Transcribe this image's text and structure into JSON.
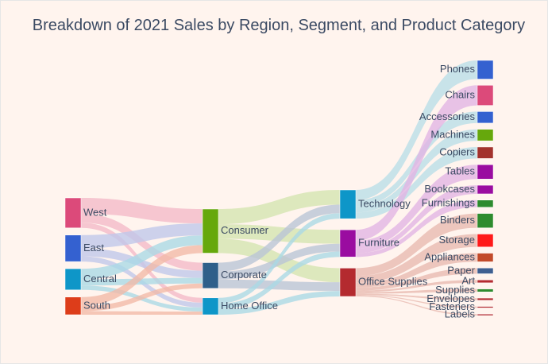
{
  "chart_data": {
    "type": "sankey",
    "title": "Breakdown of 2021 Sales by Region, Segment, and Product Category",
    "nodes": [
      {
        "id": "west",
        "label": "West",
        "color": "#dc4a7a"
      },
      {
        "id": "east",
        "label": "East",
        "color": "#3461d0"
      },
      {
        "id": "central",
        "label": "Central",
        "color": "#0e96c8"
      },
      {
        "id": "south",
        "label": "South",
        "color": "#dd3d1a"
      },
      {
        "id": "consumer",
        "label": "Consumer",
        "color": "#66a80c"
      },
      {
        "id": "corporate",
        "label": "Corporate",
        "color": "#2f5f8a"
      },
      {
        "id": "homeoffice",
        "label": "Home Office",
        "color": "#0e96c8"
      },
      {
        "id": "technology",
        "label": "Technology",
        "color": "#0e96c8"
      },
      {
        "id": "furniture",
        "label": "Furniture",
        "color": "#9a0ca0"
      },
      {
        "id": "officesupplies",
        "label": "Office Supplies",
        "color": "#b42a2f"
      },
      {
        "id": "phones",
        "label": "Phones",
        "color": "#3461d0"
      },
      {
        "id": "chairs",
        "label": "Chairs",
        "color": "#dc4a7a"
      },
      {
        "id": "accessories",
        "label": "Accessories",
        "color": "#3461d0"
      },
      {
        "id": "machines",
        "label": "Machines",
        "color": "#66a80c"
      },
      {
        "id": "copiers",
        "label": "Copiers",
        "color": "#a3322d"
      },
      {
        "id": "tables",
        "label": "Tables",
        "color": "#9a0ca0"
      },
      {
        "id": "bookcases",
        "label": "Bookcases",
        "color": "#9a0ca0"
      },
      {
        "id": "furnishings",
        "label": "Furnishings",
        "color": "#2e8b2e"
      },
      {
        "id": "binders",
        "label": "Binders",
        "color": "#2e8b2e"
      },
      {
        "id": "storage",
        "label": "Storage",
        "color": "#ff1a1a"
      },
      {
        "id": "appliances",
        "label": "Appliances",
        "color": "#c24a2a"
      },
      {
        "id": "paper",
        "label": "Paper",
        "color": "#3e5f90"
      },
      {
        "id": "art",
        "label": "Art",
        "color": "#b42a2f"
      },
      {
        "id": "supplies",
        "label": "Supplies",
        "color": "#2e8b2e"
      },
      {
        "id": "envelopes",
        "label": "Envelopes",
        "color": "#b42a2f"
      },
      {
        "id": "fasteners",
        "label": "Fasteners",
        "color": "#b42a2f"
      },
      {
        "id": "labels",
        "label": "Labels",
        "color": "#b42a2f"
      }
    ],
    "links": [
      {
        "source": "west",
        "target": "consumer",
        "value": 18,
        "color": "#f4b8c8"
      },
      {
        "source": "west",
        "target": "corporate",
        "value": 10,
        "color": "#f4b8c8"
      },
      {
        "source": "west",
        "target": "homeoffice",
        "value": 6,
        "color": "#f4b8c8"
      },
      {
        "source": "east",
        "target": "consumer",
        "value": 15,
        "color": "#bfc7ea"
      },
      {
        "source": "east",
        "target": "corporate",
        "value": 9,
        "color": "#bfc7ea"
      },
      {
        "source": "east",
        "target": "homeoffice",
        "value": 6,
        "color": "#bfc7ea"
      },
      {
        "source": "central",
        "target": "consumer",
        "value": 12,
        "color": "#a9d8e6"
      },
      {
        "source": "central",
        "target": "corporate",
        "value": 7,
        "color": "#a9d8e6"
      },
      {
        "source": "central",
        "target": "homeoffice",
        "value": 5,
        "color": "#a9d8e6"
      },
      {
        "source": "south",
        "target": "consumer",
        "value": 10,
        "color": "#f2b8a6"
      },
      {
        "source": "south",
        "target": "corporate",
        "value": 6,
        "color": "#f2b8a6"
      },
      {
        "source": "south",
        "target": "homeoffice",
        "value": 4,
        "color": "#f2b8a6"
      },
      {
        "source": "consumer",
        "target": "technology",
        "value": 19,
        "color": "#d3e4b0"
      },
      {
        "source": "consumer",
        "target": "furniture",
        "value": 18,
        "color": "#d3e4b0"
      },
      {
        "source": "consumer",
        "target": "officesupplies",
        "value": 18,
        "color": "#d3e4b0"
      },
      {
        "source": "corporate",
        "target": "technology",
        "value": 11,
        "color": "#b9c4d6"
      },
      {
        "source": "corporate",
        "target": "furniture",
        "value": 10,
        "color": "#b9c4d6"
      },
      {
        "source": "corporate",
        "target": "officesupplies",
        "value": 11,
        "color": "#b9c4d6"
      },
      {
        "source": "homeoffice",
        "target": "technology",
        "value": 7,
        "color": "#a9d8e6"
      },
      {
        "source": "homeoffice",
        "target": "furniture",
        "value": 7,
        "color": "#a9d8e6"
      },
      {
        "source": "homeoffice",
        "target": "officesupplies",
        "value": 7,
        "color": "#a9d8e6"
      },
      {
        "source": "technology",
        "target": "phones",
        "value": 13,
        "color": "#b9dee8"
      },
      {
        "source": "technology",
        "target": "accessories",
        "value": 8,
        "color": "#b9dee8"
      },
      {
        "source": "technology",
        "target": "machines",
        "value": 8,
        "color": "#b9dee8"
      },
      {
        "source": "technology",
        "target": "copiers",
        "value": 8,
        "color": "#b9dee8"
      },
      {
        "source": "furniture",
        "target": "chairs",
        "value": 14,
        "color": "#e2b4e4"
      },
      {
        "source": "furniture",
        "target": "tables",
        "value": 10,
        "color": "#e2b4e4"
      },
      {
        "source": "furniture",
        "target": "bookcases",
        "value": 6,
        "color": "#e2b4e4"
      },
      {
        "source": "furniture",
        "target": "furnishings",
        "value": 5,
        "color": "#e2b4e4"
      },
      {
        "source": "officesupplies",
        "target": "binders",
        "value": 10,
        "color": "#e8b8b0"
      },
      {
        "source": "officesupplies",
        "target": "storage",
        "value": 9,
        "color": "#e8b8b0"
      },
      {
        "source": "officesupplies",
        "target": "appliances",
        "value": 6,
        "color": "#e8b8b0"
      },
      {
        "source": "officesupplies",
        "target": "paper",
        "value": 4,
        "color": "#e8b8b0"
      },
      {
        "source": "officesupplies",
        "target": "art",
        "value": 2,
        "color": "#e8b8b0"
      },
      {
        "source": "officesupplies",
        "target": "supplies",
        "value": 2,
        "color": "#e8b8b0"
      },
      {
        "source": "officesupplies",
        "target": "envelopes",
        "value": 1.5,
        "color": "#e8b8b0"
      },
      {
        "source": "officesupplies",
        "target": "fasteners",
        "value": 1,
        "color": "#e8b8b0"
      },
      {
        "source": "officesupplies",
        "target": "labels",
        "value": 1,
        "color": "#e8b8b0"
      }
    ]
  }
}
